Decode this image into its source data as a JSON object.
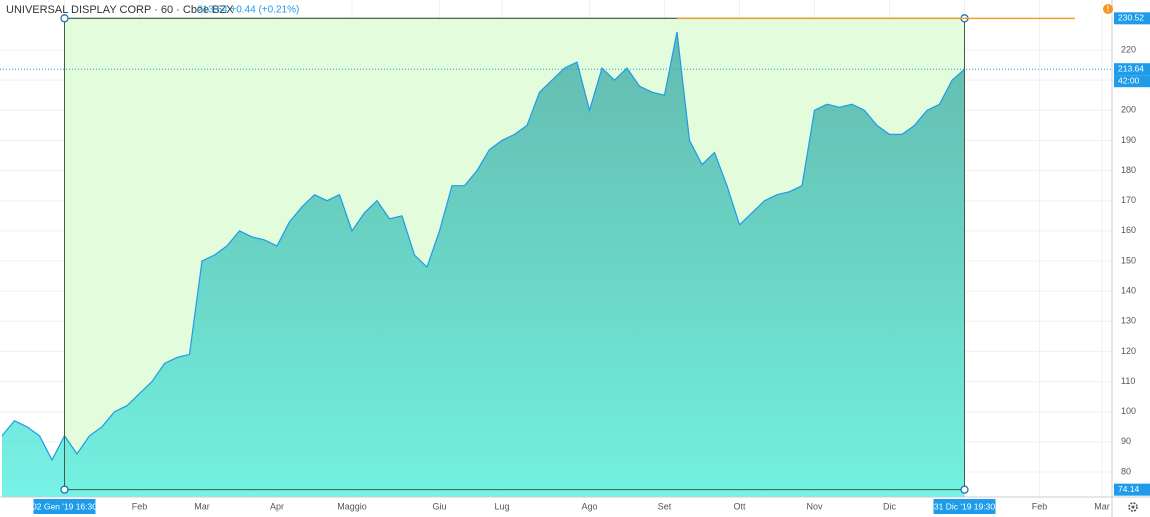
{
  "chart_data": {
    "type": "area",
    "title": "UNIVERSAL DISPLAY CORP · 60 · Cboe BZX",
    "subtitle": "213.64 +0.44 (+0.21%)",
    "categories": [
      null,
      null,
      null,
      null,
      null,
      "02 Gen '19 16:30",
      null,
      null,
      null,
      null,
      null,
      "Feb",
      null,
      null,
      null,
      null,
      "Mar",
      null,
      null,
      null,
      null,
      null,
      "Apr",
      null,
      null,
      null,
      null,
      null,
      "Maggio",
      null,
      null,
      null,
      null,
      null,
      null,
      "Giu",
      null,
      null,
      null,
      null,
      "Lug",
      null,
      null,
      null,
      null,
      null,
      null,
      "Ago",
      null,
      null,
      null,
      null,
      null,
      "Set",
      null,
      null,
      null,
      null,
      null,
      "Ott",
      null,
      null,
      null,
      null,
      null,
      "Nov",
      null,
      null,
      null,
      null,
      null,
      "Dic",
      null,
      null,
      null,
      null,
      null,
      "31 Dic '19 19:30",
      null,
      null,
      null,
      null,
      null,
      "Feb",
      null,
      null,
      null,
      null,
      "Mar"
    ],
    "values": [
      92,
      97,
      95,
      92,
      84,
      92,
      86,
      92,
      95,
      100,
      102,
      106,
      110,
      116,
      118,
      119,
      150,
      152,
      155,
      160,
      158,
      157,
      155,
      163,
      168,
      172,
      170,
      172,
      160,
      166,
      170,
      164,
      165,
      152,
      148,
      160,
      175,
      175,
      180,
      187,
      190,
      192,
      195,
      206,
      210,
      214,
      216,
      200,
      214,
      210,
      214,
      208,
      206,
      205,
      226,
      190,
      182,
      186,
      175,
      162,
      166,
      170,
      172,
      173,
      175,
      200,
      202,
      201,
      202,
      200,
      195,
      192,
      192,
      195,
      200,
      202,
      210,
      213.64,
      null,
      null,
      null,
      null,
      null,
      null,
      null,
      null,
      null,
      null,
      null
    ],
    "color": "#1e9be9",
    "ylim": [
      71.7,
      236.6
    ],
    "yticks": [
      80,
      90,
      100,
      110,
      120,
      130,
      140,
      150,
      160,
      170,
      180,
      190,
      200,
      210,
      220
    ],
    "grid": true,
    "annotations": {
      "range_high": 230.52,
      "last_price": 213.64,
      "countdown": "42:00",
      "range_low": 74.14
    }
  }
}
